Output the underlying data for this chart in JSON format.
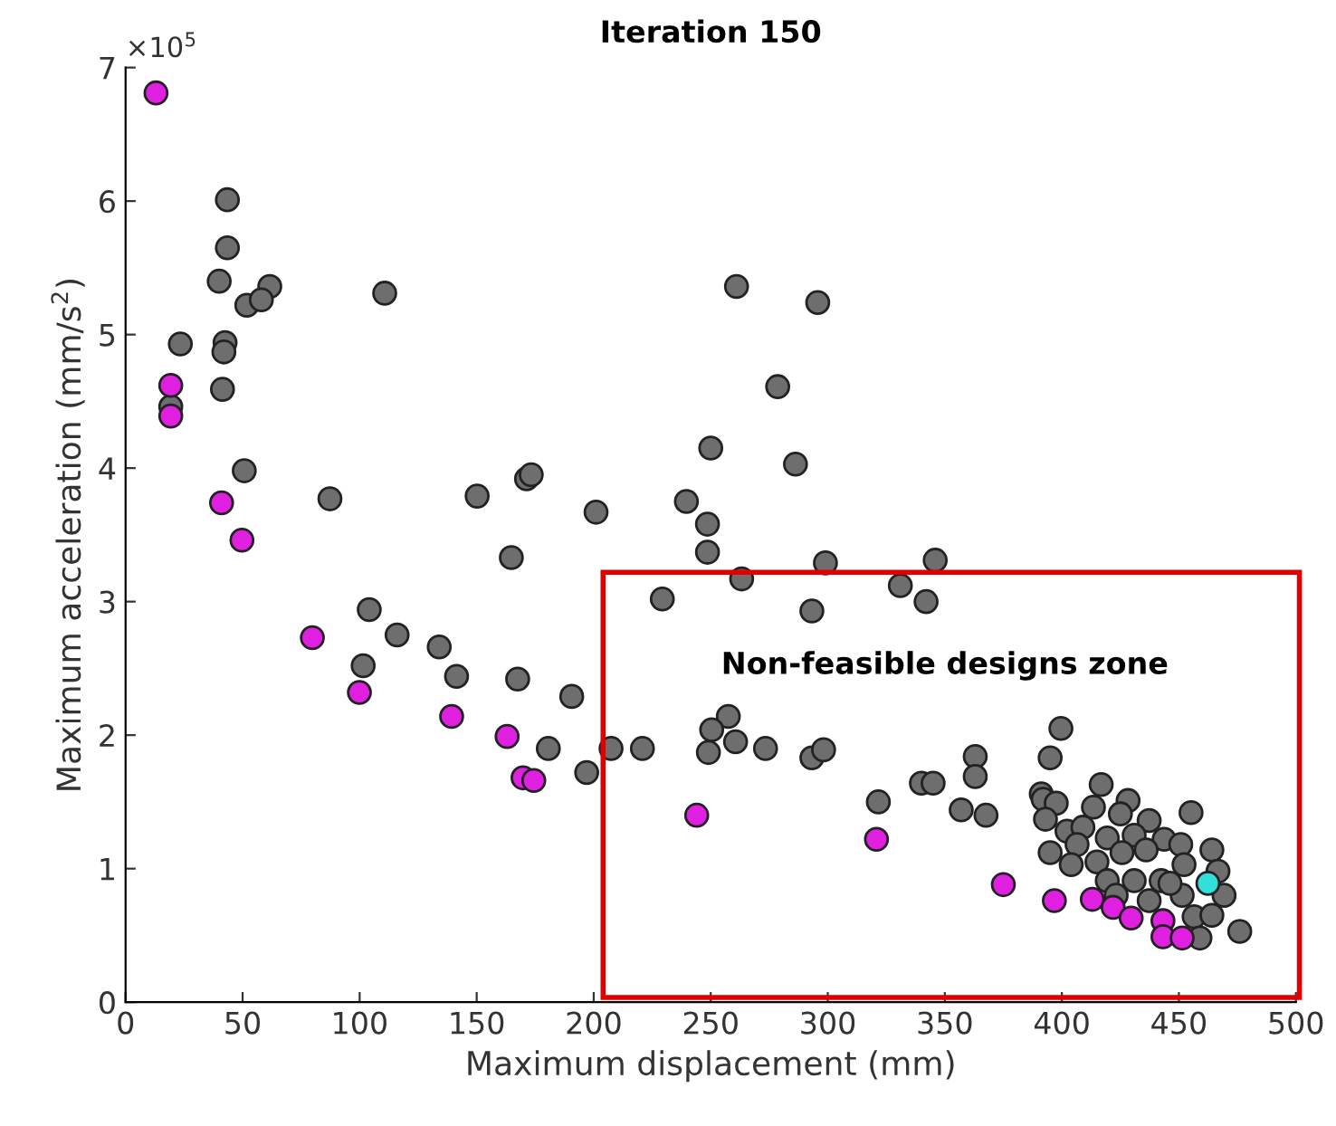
{
  "chart_data": {
    "type": "scatter",
    "title": "Iteration 150",
    "xlabel": "Maximum displacement (mm)",
    "ylabel": "Maximum acceleration (mm/s$^{2}$)",
    "xlim": [
      0,
      500
    ],
    "xticks": [
      0,
      50,
      100,
      150,
      200,
      250,
      300,
      350,
      400,
      450,
      500
    ],
    "ylim": [
      0,
      7
    ],
    "yticks": [
      0,
      1,
      2,
      3,
      4,
      5,
      6,
      7
    ],
    "grid": false,
    "marker": "circle",
    "annotations": [
      "×10$^{5}$",
      "Non-feasible designs zone"
    ],
    "series": [
      {
        "color": "#6e6e6e",
        "x": [
          43.5,
          43.5,
          40,
          61.6,
          51.8,
          58,
          110.7,
          23.4,
          42.5,
          42,
          41.4,
          19.3,
          50.7,
          87.3,
          150.2,
          171.3,
          173.3,
          201,
          164.8,
          229.3,
          104.1,
          116,
          134,
          101.5,
          141.4,
          167.5,
          190.6,
          180.6,
          207.4,
          220.8,
          197,
          250,
          239.6,
          248.6,
          248.6,
          261,
          295.7,
          278.6,
          286.2,
          263.2,
          299,
          345.9,
          293.2,
          331,
          342,
          257.5,
          250.4,
          260.6,
          249,
          273.4,
          293.2,
          298.2,
          321.6,
          340,
          345,
          363,
          363,
          357,
          367.6,
          399.6,
          395,
          391.2,
          476,
          392,
          397.6,
          393,
          416.8,
          428.3,
          413.5,
          425,
          437.3,
          455.2,
          402.2,
          409,
          419.4,
          430.9,
          443.7,
          450.8,
          395,
          406.5,
          404,
          415,
          425.7,
          436,
          464.1,
          419.4,
          430.9,
          442.4,
          452.2,
          466.7,
          437.3,
          451.4,
          456.5,
          464.1,
          469.3,
          459,
          446.2,
          423.2
        ],
        "values": [
          6.01,
          5.65,
          5.4,
          5.36,
          5.22,
          5.26,
          5.31,
          4.93,
          4.94,
          4.87,
          4.59,
          4.46,
          3.98,
          3.77,
          3.79,
          3.92,
          3.95,
          3.67,
          3.33,
          3.02,
          2.94,
          2.75,
          2.66,
          2.52,
          2.44,
          2.42,
          2.29,
          1.9,
          1.9,
          1.9,
          1.72,
          4.15,
          3.75,
          3.58,
          3.37,
          5.36,
          5.24,
          4.61,
          4.03,
          3.17,
          3.29,
          3.31,
          2.93,
          3.12,
          3.0,
          2.14,
          2.04,
          1.95,
          1.87,
          1.9,
          1.83,
          1.89,
          1.5,
          1.64,
          1.64,
          1.84,
          1.69,
          1.44,
          1.4,
          2.05,
          1.83,
          1.56,
          0.53,
          1.52,
          1.49,
          1.37,
          1.63,
          1.51,
          1.46,
          1.41,
          1.36,
          1.42,
          1.28,
          1.31,
          1.23,
          1.25,
          1.22,
          1.18,
          1.12,
          1.18,
          1.03,
          1.05,
          1.12,
          1.14,
          1.14,
          0.91,
          0.91,
          0.91,
          1.03,
          0.98,
          0.76,
          0.8,
          0.64,
          0.65,
          0.8,
          0.48,
          0.89,
          0.8
        ]
      },
      {
        "color": "#e020e0",
        "x": [
          13,
          19.3,
          19.3,
          41,
          49.7,
          79.8,
          99.9,
          139.3,
          163,
          169.8,
          174.4,
          244,
          320.8,
          375,
          396.8,
          413,
          421.9,
          429.6,
          443.2,
          443.2,
          451.4
        ],
        "values": [
          6.81,
          4.62,
          4.39,
          3.74,
          3.46,
          2.73,
          2.32,
          2.14,
          1.99,
          1.68,
          1.66,
          1.4,
          1.22,
          0.88,
          0.76,
          0.77,
          0.71,
          0.63,
          0.61,
          0.49,
          0.48
        ]
      },
      {
        "color": "#30e0d8",
        "x": [
          462.4
        ],
        "values": [
          0.89
        ]
      }
    ]
  }
}
